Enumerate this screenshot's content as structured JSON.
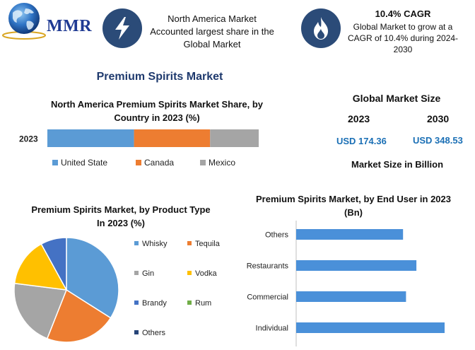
{
  "logo": {
    "text": "MMR"
  },
  "info_cards": [
    {
      "icon": "lightning-bolt-icon",
      "text": "North America Market Accounted largest share in the Global Market"
    },
    {
      "icon": "flame-icon",
      "title": "10.4% CAGR",
      "text": "Global Market to grow at a CAGR of 10.4% during 2024-2030"
    }
  ],
  "main_title": "Premium Spirits Market",
  "global_market": {
    "title": "Global Market Size",
    "years": [
      "2023",
      "2030"
    ],
    "values": [
      "USD 174.36",
      "USD 348.53"
    ],
    "note": "Market Size in Billion"
  },
  "colors": {
    "accent_dark": "#2b4b78",
    "title_blue": "#1f3a6e",
    "value_blue": "#1a6fb5"
  },
  "chart_data": [
    {
      "type": "bar",
      "orientation": "horizontal-stacked",
      "title": "North America Premium Spirits Market Share, by Country in 2023 (%)",
      "categories": [
        "2023"
      ],
      "series": [
        {
          "name": "United State",
          "values": [
            41
          ],
          "color": "#5b9bd5"
        },
        {
          "name": "Canada",
          "values": [
            36
          ],
          "color": "#ed7d31"
        },
        {
          "name": "Mexico",
          "values": [
            23
          ],
          "color": "#a5a5a5"
        }
      ],
      "xlim": [
        0,
        100
      ],
      "legend": "bottom",
      "grid": false
    },
    {
      "type": "pie",
      "title": "Premium Spirits Market, by Product Type In 2023 (%)",
      "labels": [
        "Whisky",
        "Tequila",
        "Gin",
        "Vodka",
        "Brandy",
        "Rum",
        "Others"
      ],
      "values": [
        34,
        22,
        21,
        15,
        8,
        0,
        0
      ],
      "colors": [
        "#5b9bd5",
        "#ed7d31",
        "#a5a5a5",
        "#ffc000",
        "#4472c4",
        "#70ad47",
        "#264478"
      ],
      "legend": "right"
    },
    {
      "type": "bar",
      "orientation": "horizontal",
      "title": "Premium Spirits Market, by End User in 2023 (Bn)",
      "categories": [
        "Others",
        "Restaurants",
        "Commercial",
        "Individual"
      ],
      "values": [
        72,
        81,
        74,
        100
      ],
      "xlim": [
        0,
        100
      ],
      "color": "#4a90d9",
      "grid": false
    }
  ]
}
